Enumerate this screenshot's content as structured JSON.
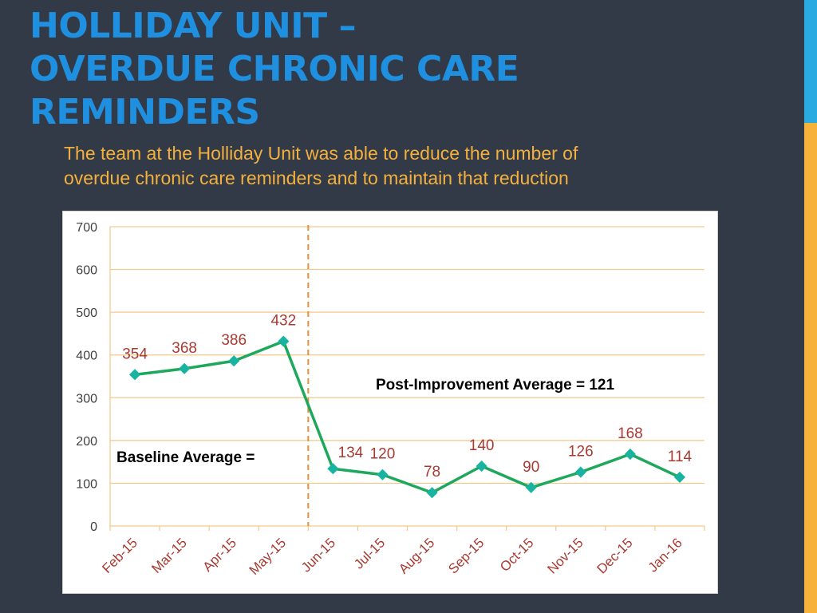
{
  "slide": {
    "title_line1": "HOLLIDAY UNIT –",
    "title_line2": "OVERDUE CHRONIC CARE",
    "title_line3": "REMINDERS",
    "subtitle_line1": "The team at the Holliday Unit was able to reduce the number of",
    "subtitle_line2": "overdue chronic care reminders and to maintain that reduction"
  },
  "chart_data": {
    "type": "line",
    "categories": [
      "Feb-15",
      "Mar-15",
      "Apr-15",
      "May-15",
      "Jun-15",
      "Jul-15",
      "Aug-15",
      "Sep-15",
      "Oct-15",
      "Nov-15",
      "Dec-15",
      "Jan-16"
    ],
    "series": [
      {
        "values": [
          354,
          368,
          386,
          432,
          134,
          120,
          78,
          140,
          90,
          126,
          168,
          114
        ]
      }
    ],
    "ylim": [
      0,
      700
    ],
    "yticks": [
      0,
      100,
      200,
      300,
      400,
      500,
      600,
      700
    ],
    "grid": true,
    "intervention_after": "May-15",
    "annotations": {
      "post_improvement": "Post-Improvement Average = 121",
      "baseline": "Baseline Average ="
    },
    "colors": {
      "line": "#1ea85b",
      "marker": "#19b4a0",
      "data_label": "#a83a32",
      "grid": "#f3c987",
      "divider": "#e8903a"
    }
  }
}
